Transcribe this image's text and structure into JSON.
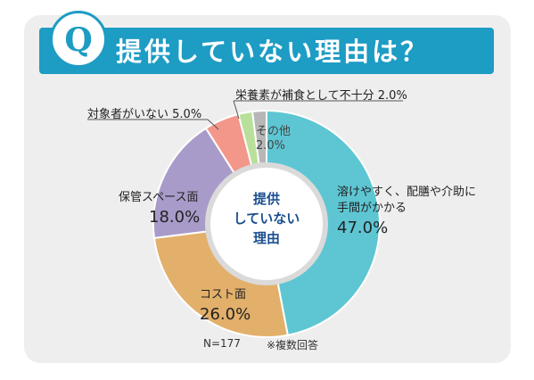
{
  "title": "提供していない理由は？",
  "badge": "Q",
  "center_label": [
    "提供",
    "していない",
    "理由"
  ],
  "footer": {
    "n": "N=177",
    "note": "※複数回答"
  },
  "colors": {
    "banner": "#1d9cc4",
    "card": "#efeeee"
  },
  "chart_data": {
    "type": "pie",
    "donut": true,
    "categories": [
      "溶けやすく、配膳や介助に手間がかかる",
      "コスト面",
      "保管スペース面",
      "対象者がいない",
      "栄養素が補食として不十分",
      "その他"
    ],
    "values": [
      47.0,
      26.0,
      18.0,
      5.0,
      2.0,
      2.0
    ],
    "display_values": [
      "47.0%",
      "26.0%",
      "18.0%",
      "5.0%",
      "2.0%",
      "2.0%"
    ],
    "colors": [
      "#5ec6d3",
      "#e2b06a",
      "#a99bc9",
      "#f2978a",
      "#b9e09b",
      "#b7b7b7"
    ],
    "label_lines": [
      [
        "溶けやすく、配膳や介助に",
        "手間がかかる"
      ],
      [
        "コスト面"
      ],
      [
        "保管スペース面"
      ],
      [
        "対象者がいない"
      ],
      [
        "栄養素が補食として不十分"
      ],
      [
        "その他"
      ]
    ]
  }
}
